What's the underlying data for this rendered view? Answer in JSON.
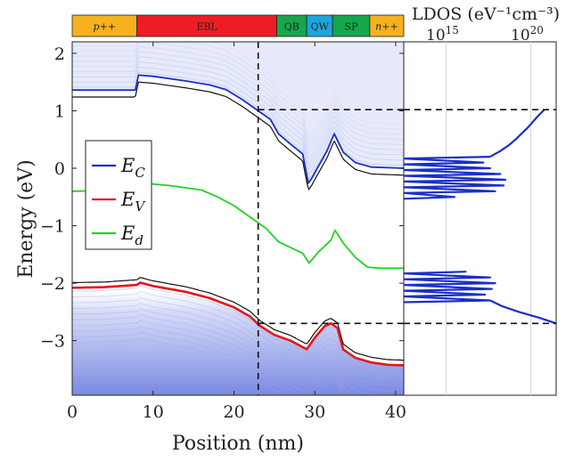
{
  "chart_data": {
    "type": "line",
    "xlabel": "Position (nm)",
    "ylabel": "Energy (eV)",
    "xlim": [
      0,
      41
    ],
    "ylim": [
      -3.95,
      2.2
    ],
    "x_ticks": [
      "0",
      "10",
      "20",
      "30",
      "40"
    ],
    "y_ticks": [
      "2",
      "1",
      "0",
      "-1",
      "-2",
      "-3"
    ],
    "regions": [
      {
        "label": "p++",
        "from": 0,
        "to": 8,
        "color": "#f6b11f",
        "italic": true
      },
      {
        "label": "EBL",
        "from": 8,
        "to": 25.3,
        "color": "#ee1c24",
        "italic": false
      },
      {
        "label": "QB",
        "from": 25.3,
        "to": 29,
        "color": "#16a74c",
        "italic": false
      },
      {
        "label": "QW",
        "from": 29,
        "to": 32.2,
        "color": "#1ba6dd",
        "italic": false
      },
      {
        "label": "SP",
        "from": 32.2,
        "to": 36.8,
        "color": "#16a74c",
        "italic": false
      },
      {
        "label": "n++",
        "from": 36.8,
        "to": 41,
        "color": "#f6b11f",
        "italic": true
      }
    ],
    "legend": {
      "placement": "left",
      "entries": [
        {
          "symbol": "E",
          "sub": "C",
          "color": "#1a2fc8"
        },
        {
          "symbol": "E",
          "sub": "V",
          "color": "#e8151b"
        },
        {
          "symbol": "E",
          "sub": "d",
          "color": "#22d322"
        }
      ]
    },
    "series": [
      {
        "name": "E_C",
        "color": "#1a2fc8",
        "x": [
          0,
          7.8,
          8.2,
          10,
          14,
          17,
          19,
          21,
          23,
          24.5,
          25.5,
          27,
          28.5,
          29.2,
          29.6,
          31.5,
          32.4,
          33.5,
          35,
          37,
          39,
          41
        ],
        "y": [
          1.36,
          1.36,
          1.62,
          1.6,
          1.52,
          1.45,
          1.37,
          1.2,
          1.0,
          0.85,
          0.6,
          0.42,
          0.25,
          -0.26,
          -0.18,
          0.3,
          0.6,
          0.28,
          0.1,
          0.02,
          0.01,
          0.0
        ]
      },
      {
        "name": "E_V",
        "color": "#e8151b",
        "x": [
          0,
          4,
          8,
          8.4,
          10,
          14,
          17,
          20,
          22,
          23.2,
          25,
          27,
          29,
          30,
          31.2,
          32,
          32.8,
          33.5,
          35,
          37,
          39,
          41
        ],
        "y": [
          -2.08,
          -2.07,
          -2.03,
          -1.99,
          -2.05,
          -2.15,
          -2.26,
          -2.42,
          -2.58,
          -2.74,
          -2.9,
          -3.0,
          -3.15,
          -2.95,
          -2.75,
          -2.7,
          -2.78,
          -3.15,
          -3.3,
          -3.38,
          -3.42,
          -3.43
        ]
      },
      {
        "name": "E_d",
        "color": "#22d322",
        "x": [
          0,
          4,
          8,
          12,
          16,
          18,
          20,
          22,
          24,
          25.5,
          27,
          28.5,
          29.3,
          30.5,
          32,
          32.5,
          33.5,
          35,
          36.5,
          38,
          41
        ],
        "y": [
          -0.4,
          -0.39,
          -0.25,
          -0.3,
          -0.38,
          -0.5,
          -0.65,
          -0.85,
          -1.05,
          -1.28,
          -1.38,
          -1.48,
          -1.65,
          -1.45,
          -1.25,
          -1.08,
          -1.3,
          -1.55,
          -1.72,
          -1.74,
          -1.74
        ]
      }
    ],
    "dashed_lines": [
      {
        "kind": "vertical",
        "x": 23
      },
      {
        "kind": "horizontal",
        "y": 1.02,
        "from_x": 23
      },
      {
        "kind": "horizontal",
        "y": -2.7,
        "from_x": 23
      }
    ],
    "ldos": {
      "title": "LDOS (eV⁻¹cm⁻³)",
      "tick_bases": [
        "10",
        "10"
      ],
      "tick_exponents": [
        "15",
        "20"
      ],
      "log_ticks": [
        15,
        20
      ],
      "xlim_log": [
        12.5,
        21.5
      ],
      "conduction": [
        {
          "E": 1.02,
          "log": 20.8
        },
        {
          "E": 0.9,
          "log": 20.4
        },
        {
          "E": 0.7,
          "log": 19.8
        },
        {
          "E": 0.5,
          "log": 19.1
        },
        {
          "E": 0.4,
          "log": 18.7
        },
        {
          "E": 0.3,
          "log": 18.2
        },
        {
          "E": 0.2,
          "log": 17.6
        },
        {
          "E": 0.1,
          "log": 17.2
        },
        {
          "E": 0.0,
          "log": 17.6
        },
        {
          "E": -0.1,
          "log": 18.2
        },
        {
          "E": -0.2,
          "log": 18.5
        },
        {
          "E": -0.3,
          "log": 18.4
        },
        {
          "E": -0.4,
          "log": 17.9
        },
        {
          "E": -0.5,
          "log": 15.5
        }
      ],
      "valence": [
        {
          "E": -1.8,
          "log": 16.2
        },
        {
          "E": -1.9,
          "log": 17.6
        },
        {
          "E": -2.0,
          "log": 17.9
        },
        {
          "E": -2.1,
          "log": 17.7
        },
        {
          "E": -2.2,
          "log": 17.3
        },
        {
          "E": -2.3,
          "log": 17.6
        },
        {
          "E": -2.4,
          "log": 18.3
        },
        {
          "E": -2.5,
          "log": 19.3
        },
        {
          "E": -2.6,
          "log": 20.5
        },
        {
          "E": -2.7,
          "log": 21.5
        }
      ]
    }
  }
}
